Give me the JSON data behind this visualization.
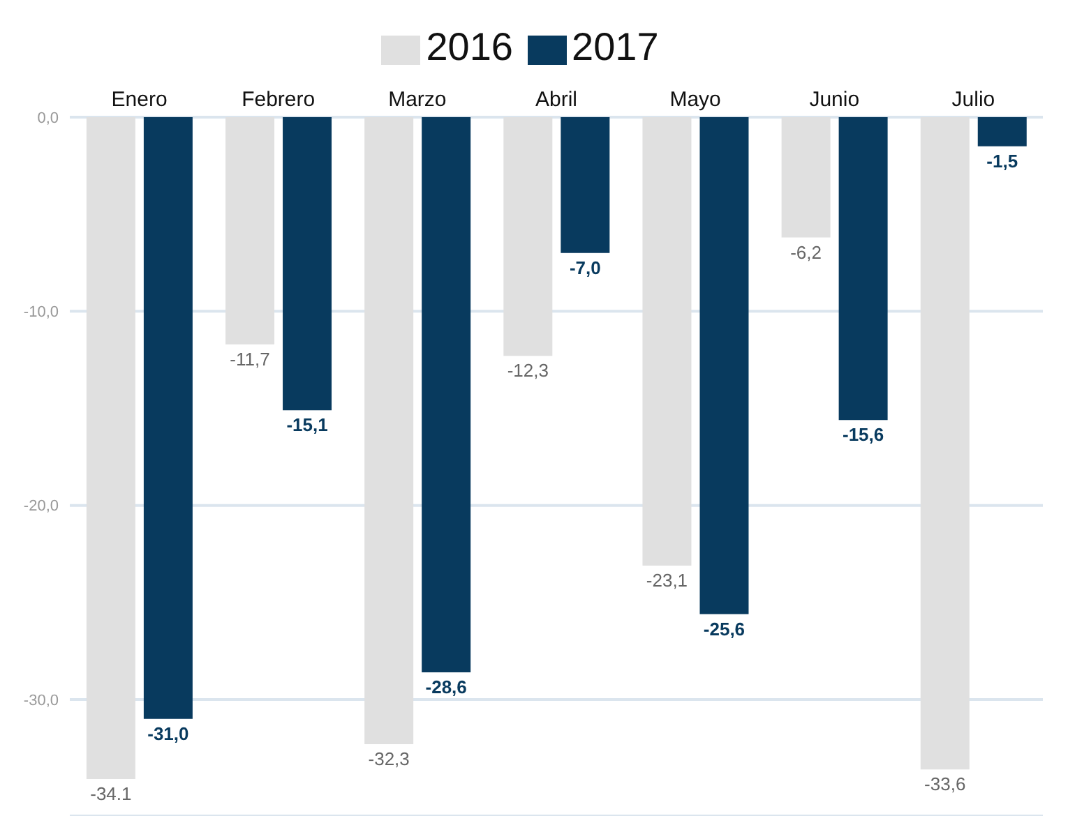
{
  "chart_data": {
    "type": "bar",
    "categories": [
      "Enero",
      "Febrero",
      "Marzo",
      "Abril",
      "Mayo",
      "Junio",
      "Julio"
    ],
    "series": [
      {
        "name": "2016",
        "color": "#e0e0e0",
        "values": [
          -34.1,
          -11.7,
          -32.3,
          -12.3,
          -23.1,
          -6.2,
          -33.6
        ],
        "value_labels": [
          "-34.1",
          "-11,7",
          "-32,3",
          "-12,3",
          "-23,1",
          "-6,2",
          "-33,6"
        ]
      },
      {
        "name": "2017",
        "color": "#083a5e",
        "values": [
          -31.0,
          -15.1,
          -28.6,
          -7.0,
          -25.6,
          -15.6,
          -1.5
        ],
        "value_labels": [
          "-31,0",
          "-15,1",
          "-28,6",
          "-7,0",
          "-25,6",
          "-15,6",
          "-1,5"
        ]
      }
    ],
    "ylim": [
      -36,
      0
    ],
    "yticks": [
      {
        "value": 0,
        "label": "0,0"
      },
      {
        "value": -10,
        "label": "-10,0"
      },
      {
        "value": -20,
        "label": "-20,0"
      },
      {
        "value": -30,
        "label": "-30,0"
      }
    ],
    "grid": "y",
    "legend": "top"
  }
}
